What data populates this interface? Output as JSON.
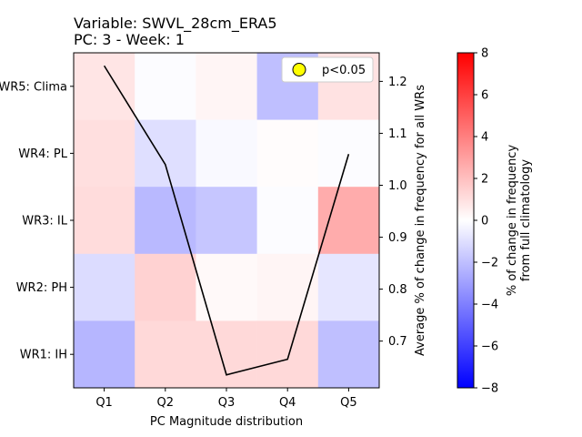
{
  "title_line1": "Variable: SWVL_28cm_ERA5",
  "title_line2": "PC: 3 - Week: 1",
  "chart_data": {
    "type": "heatmap",
    "xlabel": "PC Magnitude distribution",
    "x_categories": [
      "Q1",
      "Q2",
      "Q3",
      "Q4",
      "Q5"
    ],
    "y_categories": [
      "WR5: Clima",
      "WR4: PL",
      "WR3: IL",
      "WR2: PH",
      "WR1: IH"
    ],
    "values": [
      [
        0.8,
        -0.1,
        0.3,
        -2.0,
        0.9
      ],
      [
        1.0,
        -1.0,
        -0.2,
        0.1,
        -0.1
      ],
      [
        1.1,
        -2.2,
        -1.8,
        -0.1,
        2.6
      ],
      [
        -1.1,
        1.4,
        0.2,
        0.3,
        -0.8
      ],
      [
        -2.3,
        1.2,
        1.2,
        1.2,
        -2.0
      ]
    ],
    "line": {
      "ylabel": "Average % of change in frequency for all WRs",
      "ylim": [
        0.61,
        1.255
      ],
      "yticks": [
        0.7,
        0.8,
        0.9,
        1.0,
        1.1,
        1.2
      ],
      "ytick_labels": [
        "0.7",
        "0.8",
        "0.9",
        "1.0",
        "1.1",
        "1.2"
      ],
      "values": [
        1.23,
        1.04,
        0.635,
        0.665,
        1.06
      ],
      "color": "#000000"
    },
    "colorbar": {
      "label_line1": "% of change in frequency",
      "label_line2": "from full climatology",
      "vmin": -8,
      "vmax": 8,
      "ticks": [
        8,
        6,
        4,
        2,
        0,
        -2,
        -4,
        -6,
        -8
      ],
      "tick_labels": [
        "8",
        "6",
        "4",
        "2",
        "0",
        "−2",
        "−4",
        "−6",
        "−8"
      ],
      "cmap": "bwr"
    },
    "legend": {
      "label": "p<0.05",
      "marker_color": "#ffff00",
      "placement": "upper right"
    }
  }
}
